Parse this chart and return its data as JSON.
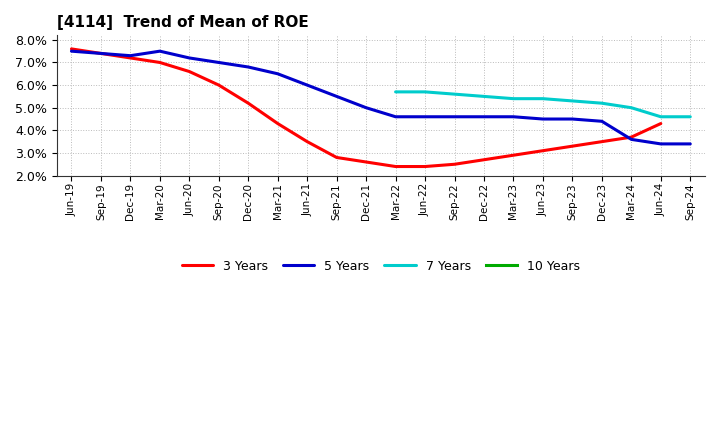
{
  "title": "[4114]  Trend of Mean of ROE",
  "ylim": [
    0.02,
    0.082
  ],
  "yticks": [
    0.02,
    0.03,
    0.04,
    0.05,
    0.06,
    0.07,
    0.08
  ],
  "background_color": "#ffffff",
  "grid_color": "#aaaaaa",
  "series": {
    "3 Years": {
      "color": "#ff0000",
      "xi": [
        0,
        1,
        2,
        3,
        4,
        5,
        6,
        7,
        8,
        9,
        10,
        11,
        12,
        13,
        14,
        15,
        16,
        17,
        18,
        19,
        20
      ],
      "y": [
        0.076,
        0.074,
        0.072,
        0.07,
        0.066,
        0.06,
        0.052,
        0.043,
        0.035,
        0.028,
        0.026,
        0.024,
        0.024,
        0.025,
        0.027,
        0.029,
        0.031,
        0.033,
        0.035,
        0.037,
        0.043
      ]
    },
    "5 Years": {
      "color": "#0000cc",
      "xi": [
        0,
        1,
        2,
        3,
        4,
        5,
        6,
        7,
        8,
        9,
        10,
        11,
        12,
        13,
        14,
        15,
        16,
        17,
        18,
        19,
        20,
        21
      ],
      "y": [
        0.075,
        0.074,
        0.073,
        0.075,
        0.072,
        0.07,
        0.068,
        0.065,
        0.06,
        0.055,
        0.05,
        0.046,
        0.046,
        0.046,
        0.046,
        0.046,
        0.045,
        0.045,
        0.044,
        0.036,
        0.034,
        0.034
      ]
    },
    "7 Years": {
      "color": "#00cccc",
      "xi": [
        11,
        12,
        13,
        14,
        15,
        16,
        17,
        18,
        19,
        20,
        21
      ],
      "y": [
        0.057,
        0.057,
        0.056,
        0.055,
        0.054,
        0.054,
        0.053,
        0.052,
        0.05,
        0.046,
        0.046
      ]
    },
    "10 Years": {
      "color": "#00aa00",
      "xi": [],
      "y": []
    }
  },
  "xtick_labels": [
    "Jun-19",
    "Sep-19",
    "Dec-19",
    "Mar-20",
    "Jun-20",
    "Sep-20",
    "Dec-20",
    "Mar-21",
    "Jun-21",
    "Sep-21",
    "Dec-21",
    "Mar-22",
    "Jun-22",
    "Sep-22",
    "Dec-22",
    "Mar-23",
    "Jun-23",
    "Sep-23",
    "Dec-23",
    "Mar-24",
    "Jun-24",
    "Sep-24"
  ],
  "legend_order": [
    "3 Years",
    "5 Years",
    "7 Years",
    "10 Years"
  ]
}
